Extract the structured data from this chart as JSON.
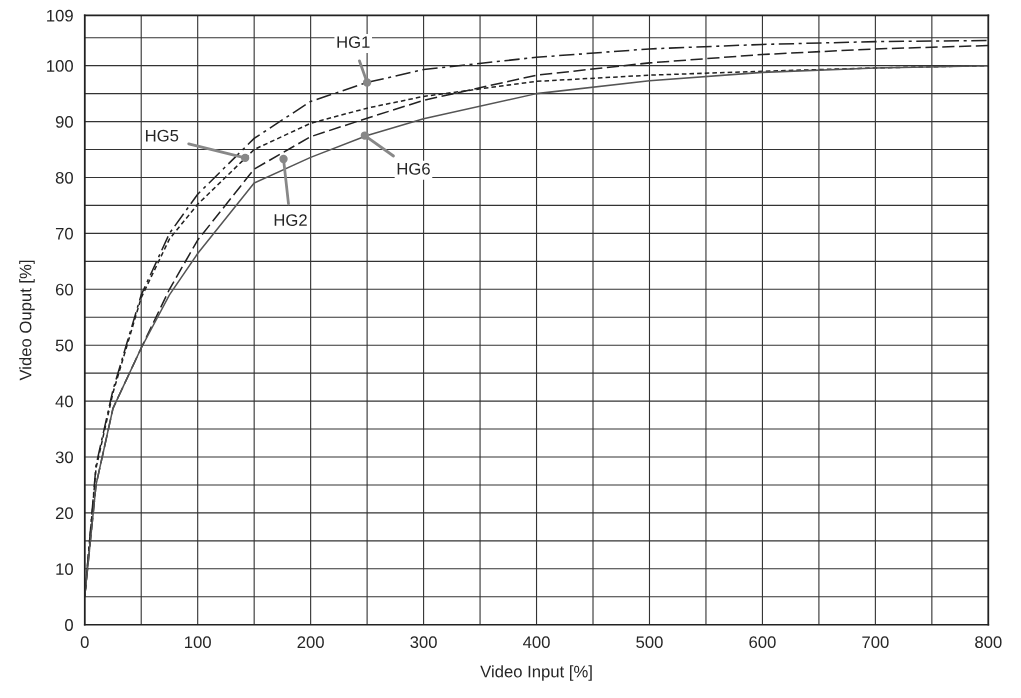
{
  "chart_data": {
    "type": "line",
    "xlabel": "Video Input [%]",
    "ylabel": "Video Ouput [%]",
    "x": [
      0,
      10,
      25,
      50,
      75,
      100,
      150,
      200,
      250,
      300,
      400,
      500,
      600,
      700,
      800
    ],
    "series": [
      {
        "color": "#222222",
        "line_style": "dashdot",
        "values": [
          5,
          28.5,
          42,
          59,
          70,
          77,
          87,
          93.6,
          97,
          99.3,
          101.5,
          103,
          103.8,
          104.3,
          104.5
        ]
      },
      {
        "color": "#222222",
        "line_style": "dashed",
        "values": [
          5,
          25,
          38.7,
          49.5,
          60,
          68.8,
          81.5,
          87.3,
          90.6,
          93.8,
          98.3,
          100.5,
          102,
          103,
          103.6
        ]
      },
      {
        "color": "#222222",
        "line_style": "dotted",
        "values": [
          5,
          28,
          41.5,
          58.5,
          69,
          75.2,
          85,
          89.7,
          92.4,
          94.5,
          97.2,
          98.3,
          99,
          99.6,
          100
        ]
      },
      {
        "color": "#555555",
        "line_style": "solid",
        "values": [
          5,
          25,
          38.7,
          49.5,
          59,
          66.4,
          79,
          83.6,
          87.5,
          90.5,
          95,
          97.3,
          98.8,
          99.6,
          100
        ]
      }
    ],
    "annotations": [
      {
        "text": "HG1",
        "x": 250,
        "y": 97
      },
      {
        "text": "HG5",
        "x": 142,
        "y": 83.5
      },
      {
        "text": "HG2",
        "x": 176,
        "y": 83.3
      },
      {
        "text": "HG6",
        "x": 248,
        "y": 87.5
      }
    ],
    "xlim": [
      0,
      800
    ],
    "xticks": [
      0,
      {
        "value": 50,
        "label": null
      },
      100,
      {
        "value": 150,
        "label": null
      },
      200,
      {
        "value": 250,
        "label": null
      },
      300,
      {
        "value": 350,
        "label": null
      },
      400,
      {
        "value": 450,
        "label": null
      },
      500,
      {
        "value": 550,
        "label": null
      },
      600,
      {
        "value": 650,
        "label": null
      },
      700,
      {
        "value": 750,
        "label": null
      },
      800
    ],
    "ylim": [
      0,
      109
    ],
    "yticks": [
      0,
      {
        "value": 5,
        "label": null
      },
      10,
      {
        "value": 15,
        "label": null
      },
      20,
      {
        "value": 25,
        "label": null
      },
      30,
      {
        "value": 35,
        "label": null
      },
      40,
      {
        "value": 45,
        "label": null
      },
      50,
      {
        "value": 55,
        "label": null
      },
      60,
      {
        "value": 65,
        "label": null
      },
      70,
      {
        "value": 75,
        "label": null
      },
      80,
      {
        "value": 85,
        "label": null
      },
      90,
      {
        "value": 95,
        "label": null
      },
      100,
      {
        "value": 105,
        "label": null
      },
      109
    ],
    "grid": true
  }
}
